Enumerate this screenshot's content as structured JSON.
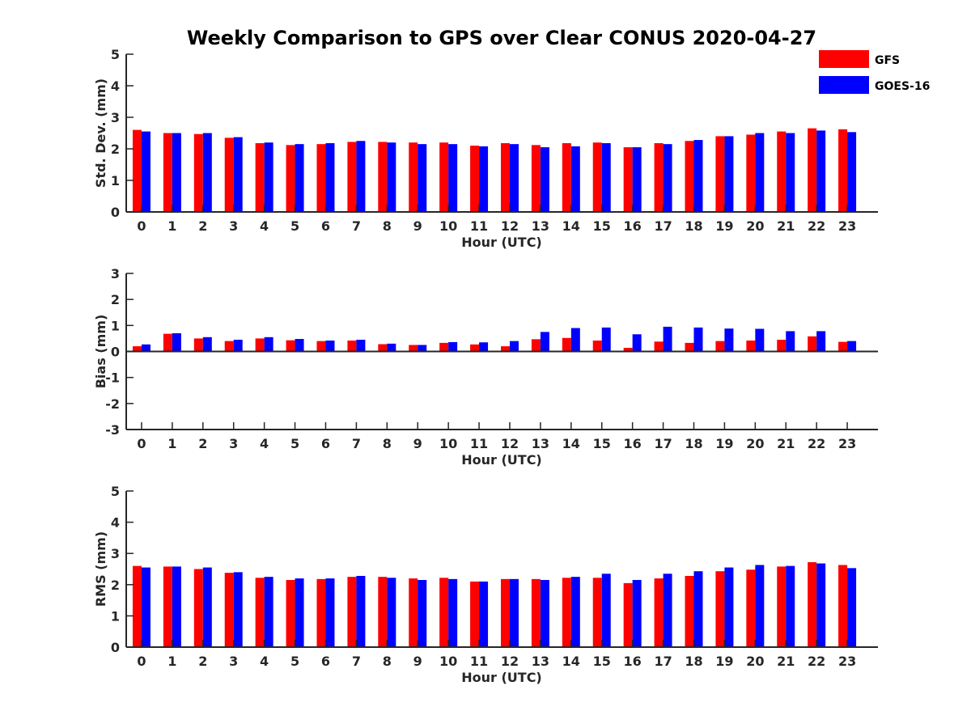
{
  "title": "Weekly Comparison to GPS over Clear CONUS 2020-04-27",
  "legend": {
    "placement": "top-right",
    "items": [
      {
        "label": "GFS",
        "color": "#ff0000"
      },
      {
        "label": "GOES-16",
        "color": "#0000ff"
      }
    ]
  },
  "chart_data": [
    {
      "type": "bar",
      "title": "Weekly Comparison to GPS over Clear CONUS 2020-04-27",
      "xlabel": "Hour (UTC)",
      "ylabel": "Std. Dev. (mm)",
      "ylim": [
        0,
        5
      ],
      "yticks": [
        0,
        1,
        2,
        3,
        4,
        5
      ],
      "grid": false,
      "categories": [
        "0",
        "1",
        "2",
        "3",
        "4",
        "5",
        "6",
        "7",
        "8",
        "9",
        "10",
        "11",
        "12",
        "13",
        "14",
        "15",
        "16",
        "17",
        "18",
        "19",
        "20",
        "21",
        "22",
        "23"
      ],
      "series": [
        {
          "name": "GFS",
          "color": "#ff0000",
          "values": [
            2.6,
            2.5,
            2.47,
            2.35,
            2.18,
            2.12,
            2.15,
            2.22,
            2.22,
            2.2,
            2.2,
            2.1,
            2.18,
            2.12,
            2.18,
            2.2,
            2.05,
            2.18,
            2.25,
            2.4,
            2.45,
            2.55,
            2.65,
            2.62
          ]
        },
        {
          "name": "GOES-16",
          "color": "#0000ff",
          "values": [
            2.55,
            2.5,
            2.5,
            2.37,
            2.2,
            2.15,
            2.18,
            2.25,
            2.2,
            2.15,
            2.15,
            2.08,
            2.15,
            2.05,
            2.08,
            2.18,
            2.05,
            2.15,
            2.28,
            2.4,
            2.5,
            2.5,
            2.58,
            2.53
          ]
        }
      ]
    },
    {
      "type": "bar",
      "xlabel": "Hour (UTC)",
      "ylabel": "Bias (mm)",
      "ylim": [
        -3,
        3
      ],
      "yticks": [
        -3,
        -2,
        -1,
        0,
        1,
        2,
        3
      ],
      "grid": false,
      "categories": [
        "0",
        "1",
        "2",
        "3",
        "4",
        "5",
        "6",
        "7",
        "8",
        "9",
        "10",
        "11",
        "12",
        "13",
        "14",
        "15",
        "16",
        "17",
        "18",
        "19",
        "20",
        "21",
        "22",
        "23"
      ],
      "series": [
        {
          "name": "GFS",
          "color": "#ff0000",
          "values": [
            0.2,
            0.68,
            0.5,
            0.4,
            0.5,
            0.43,
            0.4,
            0.42,
            0.28,
            0.25,
            0.33,
            0.27,
            0.2,
            0.47,
            0.52,
            0.42,
            0.14,
            0.38,
            0.33,
            0.4,
            0.42,
            0.45,
            0.58,
            0.37
          ]
        },
        {
          "name": "GOES-16",
          "color": "#0000ff",
          "values": [
            0.27,
            0.7,
            0.55,
            0.45,
            0.55,
            0.48,
            0.42,
            0.45,
            0.3,
            0.25,
            0.36,
            0.35,
            0.4,
            0.75,
            0.9,
            0.92,
            0.66,
            0.95,
            0.92,
            0.88,
            0.87,
            0.78,
            0.78,
            0.4
          ]
        }
      ]
    },
    {
      "type": "bar",
      "xlabel": "Hour (UTC)",
      "ylabel": "RMS (mm)",
      "ylim": [
        0,
        5
      ],
      "yticks": [
        0,
        1,
        2,
        3,
        4,
        5
      ],
      "grid": false,
      "categories": [
        "0",
        "1",
        "2",
        "3",
        "4",
        "5",
        "6",
        "7",
        "8",
        "9",
        "10",
        "11",
        "12",
        "13",
        "14",
        "15",
        "16",
        "17",
        "18",
        "19",
        "20",
        "21",
        "22",
        "23"
      ],
      "series": [
        {
          "name": "GFS",
          "color": "#ff0000",
          "values": [
            2.6,
            2.58,
            2.5,
            2.38,
            2.22,
            2.15,
            2.18,
            2.25,
            2.25,
            2.2,
            2.22,
            2.1,
            2.18,
            2.18,
            2.22,
            2.22,
            2.05,
            2.2,
            2.28,
            2.43,
            2.48,
            2.58,
            2.72,
            2.63
          ]
        },
        {
          "name": "GOES-16",
          "color": "#0000ff",
          "values": [
            2.55,
            2.58,
            2.55,
            2.4,
            2.25,
            2.2,
            2.2,
            2.28,
            2.22,
            2.15,
            2.18,
            2.1,
            2.18,
            2.15,
            2.25,
            2.35,
            2.15,
            2.35,
            2.43,
            2.55,
            2.63,
            2.6,
            2.68,
            2.53
          ]
        }
      ]
    }
  ]
}
